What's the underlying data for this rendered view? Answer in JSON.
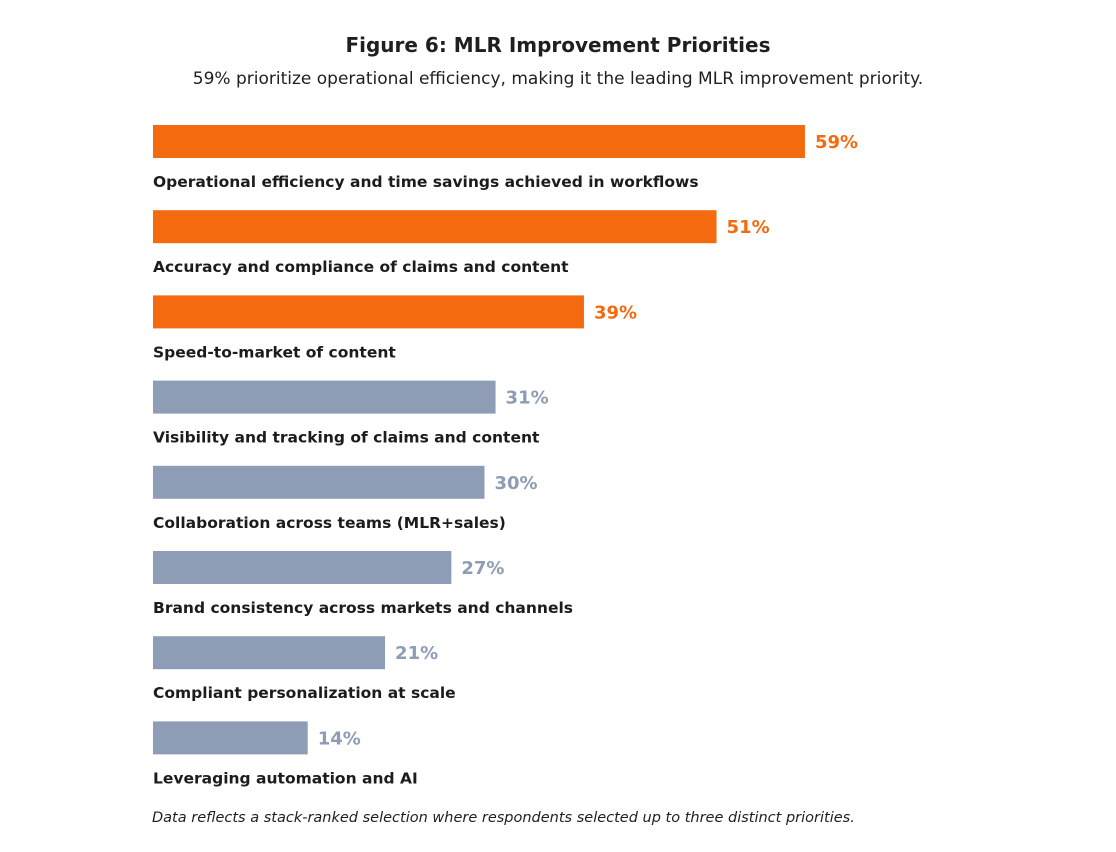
{
  "chart_data": {
    "type": "bar",
    "orientation": "horizontal",
    "title": "Figure 6: MLR Improvement Priorities",
    "subtitle": "59% prioritize operational efficiency, making it the leading MLR improvement priority.",
    "categories": [
      "Operational efficiency and time savings achieved in workflows",
      "Accuracy and compliance of claims and content",
      "Speed-to-market of content",
      "Visibility and tracking of claims and content",
      "Collaboration across teams (MLR+sales)",
      "Brand consistency across markets and channels",
      "Compliant personalization at scale",
      "Leveraging automation and AI"
    ],
    "values": [
      59,
      51,
      39,
      31,
      30,
      27,
      21,
      14
    ],
    "value_labels": [
      "59%",
      "51%",
      "39%",
      "31%",
      "30%",
      "27%",
      "21%",
      "14%"
    ],
    "highlighted": [
      true,
      true,
      true,
      false,
      false,
      false,
      false,
      false
    ],
    "colors": {
      "highlight": "#f46a0f",
      "default": "#8e9cb5"
    },
    "grid": false,
    "legend": "none",
    "footnote": "Data reflects a stack-ranked selection where respondents selected up to three distinct priorities."
  }
}
